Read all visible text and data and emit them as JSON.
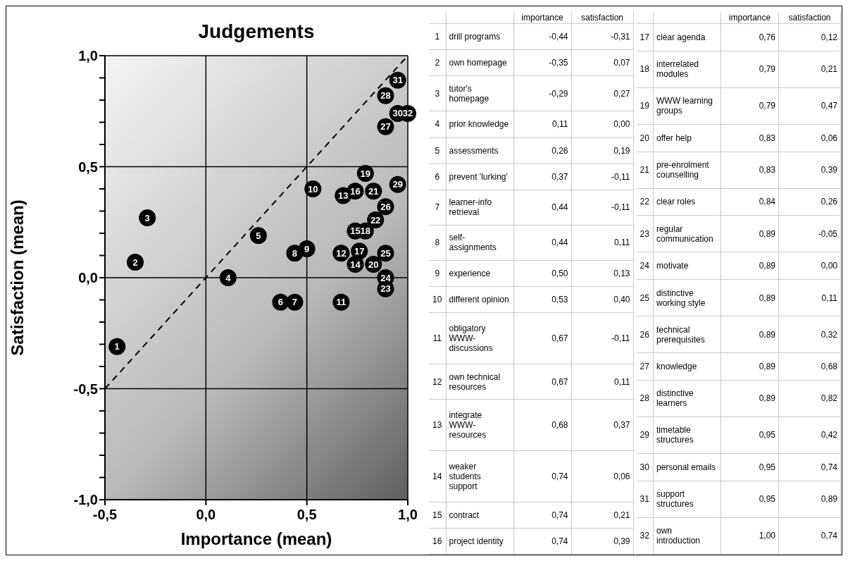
{
  "chart_data": [
    {
      "type": "scatter",
      "title": "Judgements",
      "xlabel": "Importance (mean)",
      "ylabel": "Satisfaction (mean)",
      "annotations": [
        {
          "text": "1",
          "x": -0.44,
          "y": -0.31
        },
        {
          "text": "2",
          "x": -0.35,
          "y": 0.07
        },
        {
          "text": "3",
          "x": -0.29,
          "y": 0.27
        },
        {
          "text": "4",
          "x": 0.11,
          "y": 0.0
        },
        {
          "text": "5",
          "x": 0.26,
          "y": 0.19
        },
        {
          "text": "6",
          "x": 0.37,
          "y": -0.11
        },
        {
          "text": "7",
          "x": 0.44,
          "y": -0.11
        },
        {
          "text": "8",
          "x": 0.44,
          "y": 0.11
        },
        {
          "text": "9",
          "x": 0.5,
          "y": 0.13
        },
        {
          "text": "10",
          "x": 0.53,
          "y": 0.4
        },
        {
          "text": "11",
          "x": 0.67,
          "y": -0.11
        },
        {
          "text": "12",
          "x": 0.67,
          "y": 0.11
        },
        {
          "text": "13",
          "x": 0.68,
          "y": 0.37
        },
        {
          "text": "14",
          "x": 0.74,
          "y": 0.06
        },
        {
          "text": "15",
          "x": 0.74,
          "y": 0.21
        },
        {
          "text": "16",
          "x": 0.74,
          "y": 0.39
        },
        {
          "text": "17",
          "x": 0.76,
          "y": 0.12
        },
        {
          "text": "18",
          "x": 0.79,
          "y": 0.21
        },
        {
          "text": "19",
          "x": 0.79,
          "y": 0.47
        },
        {
          "text": "20",
          "x": 0.83,
          "y": 0.06
        },
        {
          "text": "21",
          "x": 0.83,
          "y": 0.39
        },
        {
          "text": "22",
          "x": 0.84,
          "y": 0.26
        },
        {
          "text": "23",
          "x": 0.89,
          "y": -0.05
        },
        {
          "text": "24",
          "x": 0.89,
          "y": 0.0
        },
        {
          "text": "25",
          "x": 0.89,
          "y": 0.11
        },
        {
          "text": "26",
          "x": 0.89,
          "y": 0.32
        },
        {
          "text": "27",
          "x": 0.89,
          "y": 0.68
        },
        {
          "text": "28",
          "x": 0.89,
          "y": 0.82
        },
        {
          "text": "29",
          "x": 0.95,
          "y": 0.42
        },
        {
          "text": "30",
          "x": 0.95,
          "y": 0.74
        },
        {
          "text": "31",
          "x": 0.95,
          "y": 0.89
        },
        {
          "text": "32",
          "x": 1.0,
          "y": 0.74
        }
      ],
      "series": [
        {
          "type": "scatter",
          "color": "#000000",
          "x": [
            -0.44,
            -0.35,
            -0.29,
            0.11,
            0.26,
            0.37,
            0.44,
            0.44,
            0.5,
            0.53,
            0.67,
            0.67,
            0.68,
            0.74,
            0.74,
            0.74,
            0.76,
            0.79,
            0.79,
            0.83,
            0.83,
            0.84,
            0.89,
            0.89,
            0.89,
            0.89,
            0.89,
            0.89,
            0.95,
            0.95,
            0.95,
            1.0
          ],
          "values": [
            -0.31,
            0.07,
            0.27,
            0.0,
            0.19,
            -0.11,
            -0.11,
            0.11,
            0.13,
            0.4,
            -0.11,
            0.11,
            0.37,
            0.06,
            0.21,
            0.39,
            0.12,
            0.21,
            0.47,
            0.06,
            0.39,
            0.26,
            -0.05,
            0.0,
            0.11,
            0.32,
            0.68,
            0.82,
            0.42,
            0.74,
            0.89,
            0.74
          ]
        },
        {
          "type": "line",
          "color": "#000000",
          "line_style": "dashed",
          "x": [
            -0.5,
            1.0
          ],
          "values": [
            -0.5,
            1.0
          ]
        }
      ],
      "xlim": [
        -0.5,
        1.0
      ],
      "ylim": [
        -1.0,
        1.0
      ],
      "xticks": [
        {
          "value": -0.5,
          "label": "-0,5"
        },
        {
          "value": 0,
          "label": "0,0"
        },
        {
          "value": 0.5,
          "label": "0,5"
        },
        {
          "value": 1.0,
          "label": "1,0"
        }
      ],
      "yticks": [
        {
          "value": -1.0,
          "label": "-1,0"
        },
        {
          "value": -0.9,
          "label": null
        },
        {
          "value": -0.8,
          "label": null
        },
        {
          "value": -0.7,
          "label": null
        },
        {
          "value": -0.6,
          "label": null
        },
        {
          "value": -0.5,
          "label": "-0,5"
        },
        {
          "value": -0.4,
          "label": null
        },
        {
          "value": -0.3,
          "label": null
        },
        {
          "value": -0.2,
          "label": null
        },
        {
          "value": -0.1,
          "label": null
        },
        {
          "value": 0,
          "label": "0,0"
        },
        {
          "value": 0.1,
          "label": null
        },
        {
          "value": 0.2,
          "label": null
        },
        {
          "value": 0.3,
          "label": null
        },
        {
          "value": 0.4,
          "label": null
        },
        {
          "value": 0.5,
          "label": "0,5"
        },
        {
          "value": 0.6,
          "label": null
        },
        {
          "value": 0.7,
          "label": null
        },
        {
          "value": 0.8,
          "label": null
        },
        {
          "value": 0.9,
          "label": null
        },
        {
          "value": 1.0,
          "label": "1,0"
        }
      ],
      "grid": true
    },
    {
      "type": "other",
      "annotations": [
        "importance",
        "satisfaction",
        "1",
        "drill programs",
        "-0,44",
        "-0,31",
        "2",
        "own homepage",
        "-0,35",
        "0,07",
        "3",
        "tutor's homepage",
        "-0,29",
        "0,27",
        "4",
        "prior knowledge",
        "0,11",
        "0,00",
        "5",
        "assessments",
        "0,26",
        "0,19",
        "6",
        "prevent 'lurking'",
        "0,37",
        "-0,11",
        "7",
        "learner-info retrieval",
        "0,44",
        "-0,11",
        "8",
        "self-assignments",
        "0,44",
        "0,11",
        "9",
        "experience",
        "0,50",
        "0,13",
        "10",
        "different opinion",
        "0,53",
        "0,40",
        "11",
        "obligatory WWW-discussions",
        "0,67",
        "-0,11",
        "12",
        "own technical resources",
        "0,67",
        "0,11",
        "13",
        "integrate WWW-resources",
        "0,68",
        "0,37",
        "14",
        "weaker students support",
        "0,74",
        "0,06",
        "15",
        "contract",
        "0,74",
        "0,21",
        "16",
        "project identity",
        "0,74",
        "0,39",
        "17",
        "clear agenda",
        "0,76",
        "0,12",
        "18",
        "interrelated modules",
        "0,79",
        "0,21",
        "19",
        "WWW learning groups",
        "0,79",
        "0,47",
        "20",
        "offer help",
        "0,83",
        "0,06",
        "21",
        "pre-enrolment counselling",
        "0,83",
        "0,39",
        "22",
        "clear roles",
        "0,84",
        "0,26",
        "23",
        "regular communication",
        "0,89",
        "-0,05",
        "24",
        "motivate",
        "0,89",
        "0,00",
        "25",
        "distinctive working style",
        "0,89",
        "0,11",
        "26",
        "technical prerequisites",
        "0,89",
        "0,32",
        "27",
        "knowledge",
        "0,89",
        "0,68",
        "28",
        "distinctive learners",
        "0,89",
        "0,82",
        "29",
        "timetable structures",
        "0,95",
        "0,42",
        "30",
        "personal emails",
        "0,95",
        "0,74",
        "31",
        "support structures",
        "0,95",
        "0,89",
        "32",
        "own introduction",
        "1,00",
        "0,74"
      ]
    }
  ]
}
